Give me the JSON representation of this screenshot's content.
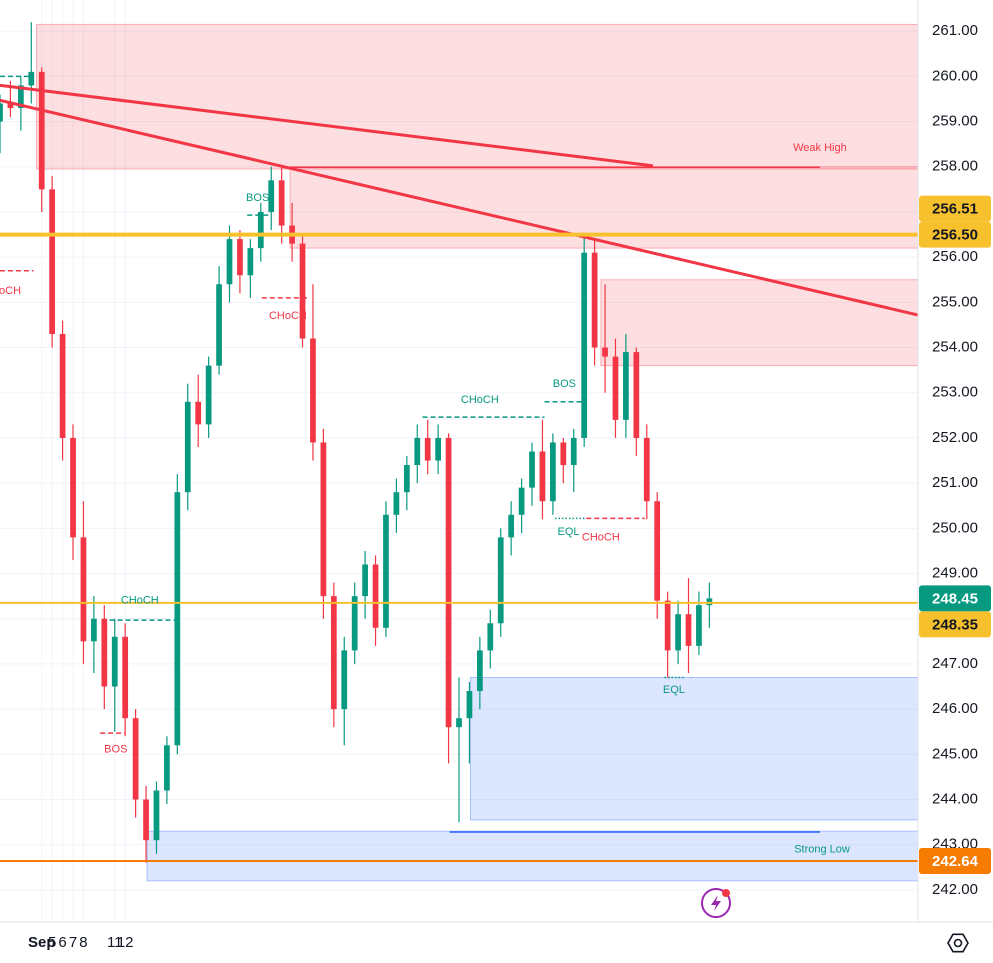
{
  "chart_data": {
    "type": "candlestick",
    "xlim": [
      0,
      88
    ],
    "ylim": [
      241.29,
      261.69
    ],
    "grid": true,
    "up_color": "#089981",
    "down_color": "#f23645",
    "xticks": [
      {
        "value": 4,
        "label": "Sep"
      },
      5,
      6,
      7,
      8,
      11,
      12
    ],
    "yticks": [
      {
        "value": 242,
        "label": "242.00"
      },
      {
        "value": 243,
        "label": "243.00"
      },
      {
        "value": 244,
        "label": "244.00"
      },
      {
        "value": 245,
        "label": "245.00"
      },
      {
        "value": 246,
        "label": "246.00"
      },
      {
        "value": 247,
        "label": "247.00"
      },
      {
        "value": 248,
        "label": "248.00"
      },
      {
        "value": 249,
        "label": "249.00"
      },
      {
        "value": 250,
        "label": "250.00"
      },
      {
        "value": 251,
        "label": "251.00"
      },
      {
        "value": 252,
        "label": "252.00"
      },
      {
        "value": 253,
        "label": "253.00"
      },
      {
        "value": 254,
        "label": "254.00"
      },
      {
        "value": 255,
        "label": "255.00"
      },
      {
        "value": 256,
        "label": "256.00"
      },
      {
        "value": 257,
        "label": "257.00"
      },
      {
        "value": 258,
        "label": "258.00"
      },
      {
        "value": 259,
        "label": "259.00"
      },
      {
        "value": 260,
        "label": "260.00"
      },
      {
        "value": 261,
        "label": "261.00"
      }
    ],
    "open": [
      259.0,
      259.4,
      259.3,
      259.8,
      260.1,
      257.5,
      254.3,
      252.0,
      249.8,
      247.5,
      248.0,
      246.5,
      247.6,
      245.8,
      244.0,
      243.1,
      244.2,
      245.2,
      250.8,
      252.8,
      252.3,
      253.6,
      255.4,
      256.4,
      255.6,
      256.2,
      257.0,
      257.7,
      256.7,
      256.3,
      254.2,
      251.9,
      248.5,
      246.0,
      247.3,
      248.5,
      249.2,
      247.8,
      250.3,
      250.8,
      251.4,
      252.0,
      251.5,
      252.0,
      245.6,
      245.8,
      246.4,
      247.3,
      247.9,
      249.8,
      250.3,
      250.9,
      251.7,
      250.6,
      251.9,
      251.4,
      252.0,
      256.1,
      254.0,
      253.8,
      252.4,
      253.9,
      252.0,
      250.6,
      248.4,
      247.3,
      248.1,
      247.4,
      248.3
    ],
    "high": [
      259.6,
      259.9,
      260.0,
      261.2,
      260.2,
      257.8,
      254.6,
      252.3,
      250.6,
      248.5,
      248.3,
      248.0,
      247.9,
      246.0,
      244.3,
      244.4,
      245.4,
      251.2,
      253.2,
      253.4,
      253.8,
      255.8,
      256.7,
      256.6,
      256.4,
      257.2,
      258.0,
      258.0,
      257.2,
      256.5,
      255.4,
      252.2,
      248.8,
      247.6,
      248.8,
      249.5,
      249.4,
      250.6,
      251.1,
      251.6,
      252.3,
      252.4,
      252.3,
      252.1,
      246.7,
      246.6,
      247.6,
      248.2,
      250.0,
      250.6,
      251.1,
      251.9,
      252.4,
      252.1,
      252.0,
      252.2,
      256.5,
      256.4,
      255.4,
      254.2,
      254.3,
      254.0,
      252.3,
      250.8,
      248.6,
      248.4,
      248.9,
      248.6,
      248.8
    ],
    "low": [
      258.3,
      259.1,
      258.8,
      259.4,
      257.0,
      254.0,
      251.5,
      249.3,
      247.0,
      246.8,
      246.0,
      245.5,
      245.4,
      243.6,
      242.6,
      242.8,
      243.9,
      245.0,
      250.4,
      251.8,
      252.0,
      253.4,
      255.0,
      255.2,
      255.1,
      255.9,
      256.6,
      256.3,
      255.9,
      254.0,
      251.5,
      248.0,
      245.6,
      245.2,
      247.0,
      248.0,
      247.4,
      247.6,
      249.9,
      250.4,
      251.0,
      251.2,
      251.2,
      244.8,
      243.5,
      244.8,
      246.0,
      246.9,
      247.6,
      249.4,
      249.9,
      250.5,
      250.2,
      250.3,
      251.0,
      250.8,
      251.8,
      253.6,
      253.0,
      252.0,
      252.0,
      251.6,
      250.2,
      248.0,
      246.7,
      247.0,
      246.8,
      247.2,
      247.8
    ],
    "close": [
      259.4,
      259.3,
      259.8,
      260.1,
      257.5,
      254.3,
      252.0,
      249.8,
      247.5,
      248.0,
      246.5,
      247.6,
      245.8,
      244.0,
      243.1,
      244.2,
      245.2,
      250.8,
      252.8,
      252.3,
      253.6,
      255.4,
      256.4,
      255.6,
      256.2,
      257.0,
      257.7,
      256.7,
      256.3,
      254.2,
      251.9,
      248.5,
      246.0,
      247.3,
      248.5,
      249.2,
      247.8,
      250.3,
      250.8,
      251.4,
      252.0,
      251.5,
      252.0,
      245.6,
      245.8,
      246.4,
      247.3,
      247.9,
      249.8,
      250.3,
      250.9,
      251.7,
      250.6,
      251.9,
      251.4,
      252.0,
      256.1,
      254.0,
      253.8,
      252.4,
      253.9,
      252.0,
      250.6,
      248.4,
      247.3,
      248.1,
      247.4,
      248.3,
      248.45
    ],
    "zones": [
      {
        "x0": 3.5,
        "top": 261.15,
        "bottom": 257.95,
        "color": "#f23645"
      },
      {
        "x0": 27.8,
        "top": 258.0,
        "bottom": 256.2,
        "color": "#f23645"
      },
      {
        "x0": 57.6,
        "top": 255.5,
        "bottom": 253.6,
        "color": "#f23645"
      },
      {
        "x0": 45.1,
        "top": 246.7,
        "bottom": 243.55,
        "color": "#2962ff"
      },
      {
        "x0": 14.1,
        "top": 243.3,
        "bottom": 242.2,
        "color": "#2962ff"
      }
    ],
    "trend_lines": [
      {
        "x0": 0,
        "y0": 259.8,
        "x1": 62.6,
        "y1": 258.02,
        "color": "#f23645"
      },
      {
        "x0": 0,
        "y0": 259.47,
        "x1": 88,
        "y1": 254.72,
        "color": "#f23645"
      }
    ],
    "structure_lines": [
      {
        "x0": 0,
        "x1": 2.9,
        "price": 260.0,
        "color": "#089981",
        "style": "dashed"
      },
      {
        "x0": 0,
        "x1": 3.2,
        "price": 255.7,
        "color": "#f23645",
        "style": "dashed"
      },
      {
        "x0": 23.7,
        "x1": 25.9,
        "price": 256.93,
        "color": "#089981",
        "style": "dashed"
      },
      {
        "x0": 25.1,
        "x1": 29.7,
        "price": 255.1,
        "color": "#f23645",
        "style": "dashed"
      },
      {
        "x0": 10.5,
        "x1": 17.1,
        "price": 247.97,
        "color": "#089981",
        "style": "dashed"
      },
      {
        "x0": 9.6,
        "x1": 12.0,
        "price": 245.47,
        "color": "#f23645",
        "style": "dashed"
      },
      {
        "x0": 40.5,
        "x1": 52.2,
        "price": 252.46,
        "color": "#089981",
        "style": "dashed"
      },
      {
        "x0": 52.2,
        "x1": 56.2,
        "price": 252.8,
        "color": "#089981",
        "style": "dashed"
      },
      {
        "x0": 53.2,
        "x1": 56.1,
        "price": 250.22,
        "color": "#089981",
        "style": "dotted"
      },
      {
        "x0": 56.2,
        "x1": 61.8,
        "price": 250.22,
        "color": "#f23645",
        "style": "dashed"
      },
      {
        "x0": 63.7,
        "x1": 65.7,
        "price": 246.7,
        "color": "#089981",
        "style": "dotted"
      },
      {
        "x0": 27.8,
        "x1": 78.6,
        "price": 257.99,
        "color": "#f23645",
        "style": "solid"
      },
      {
        "x0": 43.1,
        "x1": 78.6,
        "price": 243.28,
        "color": "#2962ff",
        "style": "solid"
      }
    ],
    "annotations": [
      {
        "text": "CHoCH",
        "x": 0.2,
        "price": 255.25,
        "color": "#f23645"
      },
      {
        "text": "BOS",
        "x": 24.7,
        "price": 257.31,
        "color": "#089981"
      },
      {
        "text": "CHoCH",
        "x": 27.6,
        "price": 254.7,
        "color": "#f23645"
      },
      {
        "text": "CHoCH",
        "x": 13.4,
        "price": 248.4,
        "color": "#089981"
      },
      {
        "text": "BOS",
        "x": 11.1,
        "price": 245.1,
        "color": "#f23645"
      },
      {
        "text": "CHoCH",
        "x": 46.0,
        "price": 252.84,
        "color": "#089981"
      },
      {
        "text": "BOS",
        "x": 54.1,
        "price": 253.19,
        "color": "#089981"
      },
      {
        "text": "EQL",
        "x": 54.5,
        "price": 249.92,
        "color": "#089981"
      },
      {
        "text": "CHoCH",
        "x": 57.6,
        "price": 249.8,
        "color": "#f23645"
      },
      {
        "text": "EQL",
        "x": 64.6,
        "price": 246.42,
        "color": "#089981"
      },
      {
        "text": "Weak High",
        "x": 78.6,
        "price": 258.41,
        "color": "#f23645"
      },
      {
        "text": "Strong Low",
        "x": 78.8,
        "price": 242.89,
        "color": "#089981"
      }
    ],
    "levels": [
      {
        "price": 256.5,
        "color": "#f7c12e",
        "width": 4
      },
      {
        "price": 248.35,
        "color": "#f7c12e",
        "width": 2
      },
      {
        "price": 242.64,
        "color": "#f57c00",
        "width": 2
      }
    ],
    "price_tags": [
      {
        "value": 256.5,
        "label": "256.50",
        "color": "#f7c12e",
        "text_color": "#131722"
      },
      {
        "value": 256.51,
        "label": "256.51",
        "color": "#f7c12e",
        "text_color": "#131722"
      },
      {
        "value": 248.45,
        "label": "248.45",
        "color": "#089981",
        "text_color": "#ffffff"
      },
      {
        "value": 248.35,
        "label": "248.35",
        "color": "#f7c12e",
        "text_color": "#131722"
      },
      {
        "value": 242.64,
        "label": "242.64",
        "color": "#f57c00",
        "text_color": "#ffffff"
      }
    ]
  }
}
